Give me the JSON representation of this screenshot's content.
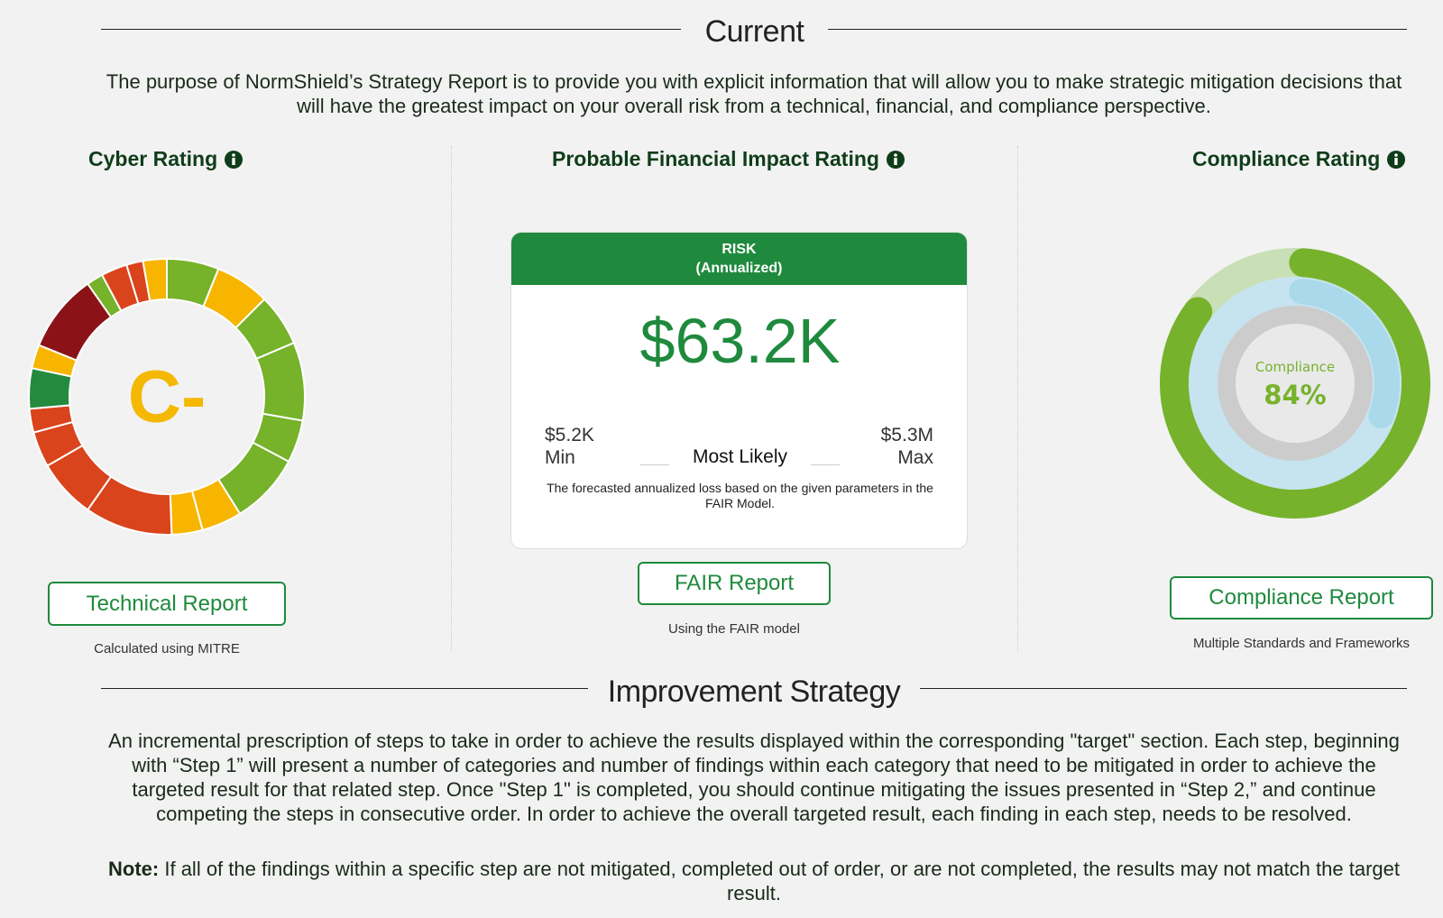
{
  "current": {
    "title": "Current",
    "description": "The purpose of NormShield’s Strategy Report is to provide you with explicit information that will allow you to make strategic mitigation decisions that will have the greatest impact on your overall risk from a technical, financial, and compliance perspective."
  },
  "cyber": {
    "title": "Cyber Rating",
    "grade": "C-",
    "button": "Technical Report",
    "note": "Calculated using MITRE"
  },
  "financial": {
    "title": "Probable Financial Impact Rating",
    "card_title": "RISK",
    "card_subtitle": "(Annualized)",
    "value": "$63.2K",
    "min_value": "$5.2K",
    "min_label": "Min",
    "most_likely": "Most Likely",
    "max_value": "$5.3M",
    "max_label": "Max",
    "description": "The forecasted annualized loss based on the given parameters in the FAIR Model.",
    "button": "FAIR Report",
    "note": "Using the FAIR model"
  },
  "compliance": {
    "title": "Compliance Rating",
    "label": "Compliance",
    "value": "84%",
    "button": "Compliance Report",
    "note": "Multiple Standards and Frameworks"
  },
  "improvement": {
    "title": "Improvement Strategy",
    "description": "An incremental prescription of steps to take in order to achieve the results displayed within the corresponding \"target\" section. Each step, beginning with “Step 1” will present a number of categories and number of findings within each category that need to be mitigated in order to achieve the targeted result for that related step. Once \"Step 1\" is completed, you should continue mitigating the issues presented in “Step 2,” and continue competing the steps in consecutive order. In order to achieve the overall targeted result, each finding in each step, needs to be resolved.",
    "note_label": "Note:",
    "note_text": "If all of the findings within a specific step are not mitigated, completed out of order, or are not completed, the results may not match the target result."
  }
}
